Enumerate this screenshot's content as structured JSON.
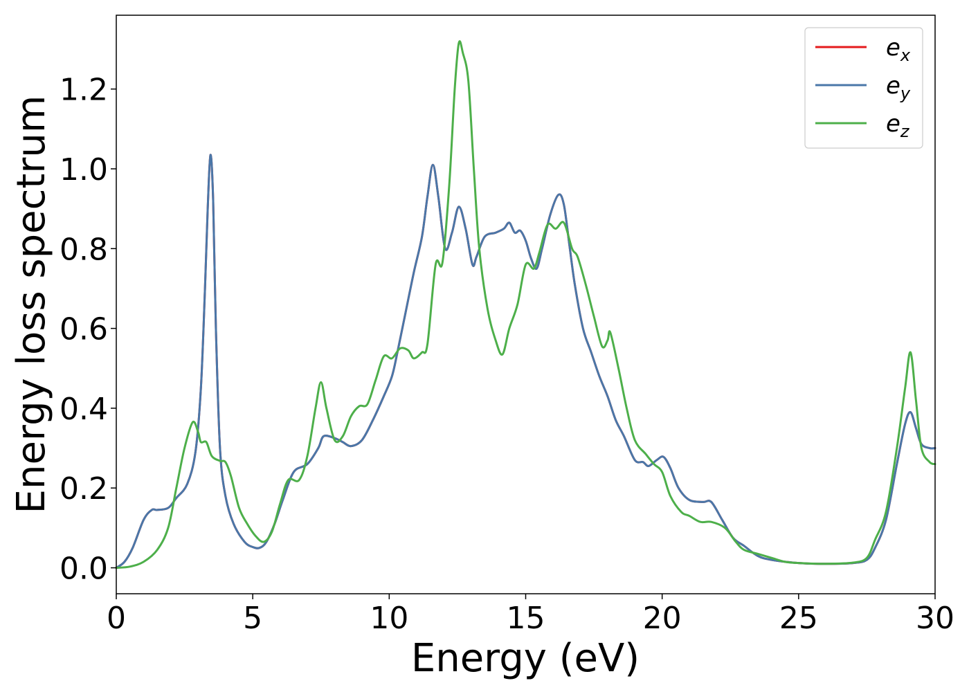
{
  "chart_data": {
    "type": "line",
    "xlabel": "Energy (eV)",
    "ylabel": "Energy loss spectrum",
    "xlim": [
      0,
      30
    ],
    "ylim": [
      -0.065,
      1.385
    ],
    "xticks": [
      0,
      5,
      10,
      15,
      20,
      25,
      30
    ],
    "xtick_labels": [
      "0",
      "5",
      "10",
      "15",
      "20",
      "25",
      "30"
    ],
    "yticks": [
      0.0,
      0.2,
      0.4,
      0.6,
      0.8,
      1.0,
      1.2
    ],
    "ytick_labels": [
      "0.0",
      "0.2",
      "0.4",
      "0.6",
      "0.8",
      "1.0",
      "1.2"
    ],
    "grid": false,
    "legend_position": "top-right",
    "series": [
      {
        "name": "e_x",
        "legend_base": "e",
        "legend_sub": "x",
        "color": "#e41a1c",
        "points": [
          [
            0,
            0
          ],
          [
            0.3,
            0.015
          ],
          [
            0.6,
            0.05
          ],
          [
            1.0,
            0.12
          ],
          [
            1.3,
            0.145
          ],
          [
            1.5,
            0.145
          ],
          [
            1.9,
            0.15
          ],
          [
            2.2,
            0.175
          ],
          [
            2.6,
            0.21
          ],
          [
            2.9,
            0.29
          ],
          [
            3.1,
            0.45
          ],
          [
            3.25,
            0.7
          ],
          [
            3.35,
            0.9
          ],
          [
            3.45,
            1.035
          ],
          [
            3.55,
            0.92
          ],
          [
            3.65,
            0.6
          ],
          [
            3.8,
            0.3
          ],
          [
            4.0,
            0.18
          ],
          [
            4.3,
            0.11
          ],
          [
            4.7,
            0.065
          ],
          [
            5.0,
            0.052
          ],
          [
            5.25,
            0.05
          ],
          [
            5.5,
            0.065
          ],
          [
            5.8,
            0.11
          ],
          [
            6.1,
            0.17
          ],
          [
            6.5,
            0.24
          ],
          [
            7.0,
            0.26
          ],
          [
            7.4,
            0.3
          ],
          [
            7.6,
            0.33
          ],
          [
            8.0,
            0.325
          ],
          [
            8.3,
            0.315
          ],
          [
            8.6,
            0.305
          ],
          [
            9.0,
            0.32
          ],
          [
            9.4,
            0.37
          ],
          [
            9.8,
            0.43
          ],
          [
            10.1,
            0.48
          ],
          [
            10.3,
            0.54
          ],
          [
            10.6,
            0.64
          ],
          [
            10.9,
            0.74
          ],
          [
            11.2,
            0.83
          ],
          [
            11.4,
            0.93
          ],
          [
            11.6,
            1.01
          ],
          [
            11.8,
            0.93
          ],
          [
            12.05,
            0.8
          ],
          [
            12.3,
            0.84
          ],
          [
            12.55,
            0.905
          ],
          [
            12.8,
            0.85
          ],
          [
            13.05,
            0.76
          ],
          [
            13.2,
            0.78
          ],
          [
            13.5,
            0.83
          ],
          [
            13.9,
            0.84
          ],
          [
            14.2,
            0.85
          ],
          [
            14.4,
            0.865
          ],
          [
            14.6,
            0.84
          ],
          [
            14.8,
            0.845
          ],
          [
            15.0,
            0.82
          ],
          [
            15.2,
            0.775
          ],
          [
            15.4,
            0.75
          ],
          [
            15.6,
            0.8
          ],
          [
            15.9,
            0.885
          ],
          [
            16.2,
            0.935
          ],
          [
            16.4,
            0.91
          ],
          [
            16.6,
            0.81
          ],
          [
            16.8,
            0.71
          ],
          [
            17.1,
            0.6
          ],
          [
            17.4,
            0.54
          ],
          [
            17.7,
            0.48
          ],
          [
            18.0,
            0.43
          ],
          [
            18.3,
            0.37
          ],
          [
            18.6,
            0.33
          ],
          [
            19.0,
            0.27
          ],
          [
            19.3,
            0.265
          ],
          [
            19.5,
            0.255
          ],
          [
            19.8,
            0.27
          ],
          [
            20.05,
            0.278
          ],
          [
            20.3,
            0.25
          ],
          [
            20.6,
            0.2
          ],
          [
            21.0,
            0.17
          ],
          [
            21.5,
            0.165
          ],
          [
            21.8,
            0.165
          ],
          [
            22.2,
            0.12
          ],
          [
            22.6,
            0.075
          ],
          [
            23.0,
            0.055
          ],
          [
            23.5,
            0.03
          ],
          [
            24.0,
            0.02
          ],
          [
            25.0,
            0.012
          ],
          [
            26.0,
            0.01
          ],
          [
            27.0,
            0.012
          ],
          [
            27.5,
            0.02
          ],
          [
            27.8,
            0.05
          ],
          [
            28.2,
            0.12
          ],
          [
            28.6,
            0.26
          ],
          [
            28.9,
            0.36
          ],
          [
            29.1,
            0.39
          ],
          [
            29.3,
            0.35
          ],
          [
            29.5,
            0.31
          ],
          [
            29.8,
            0.3
          ],
          [
            30.0,
            0.3
          ]
        ]
      },
      {
        "name": "e_y",
        "legend_base": "e",
        "legend_sub": "y",
        "color": "#4a77a8",
        "points": [
          [
            0,
            0
          ],
          [
            0.3,
            0.015
          ],
          [
            0.6,
            0.05
          ],
          [
            1.0,
            0.12
          ],
          [
            1.3,
            0.145
          ],
          [
            1.5,
            0.145
          ],
          [
            1.9,
            0.15
          ],
          [
            2.2,
            0.175
          ],
          [
            2.6,
            0.21
          ],
          [
            2.9,
            0.29
          ],
          [
            3.1,
            0.45
          ],
          [
            3.25,
            0.7
          ],
          [
            3.35,
            0.9
          ],
          [
            3.45,
            1.035
          ],
          [
            3.55,
            0.92
          ],
          [
            3.65,
            0.6
          ],
          [
            3.8,
            0.3
          ],
          [
            4.0,
            0.18
          ],
          [
            4.3,
            0.11
          ],
          [
            4.7,
            0.065
          ],
          [
            5.0,
            0.052
          ],
          [
            5.25,
            0.05
          ],
          [
            5.5,
            0.065
          ],
          [
            5.8,
            0.11
          ],
          [
            6.1,
            0.17
          ],
          [
            6.5,
            0.24
          ],
          [
            7.0,
            0.26
          ],
          [
            7.4,
            0.3
          ],
          [
            7.6,
            0.33
          ],
          [
            8.0,
            0.325
          ],
          [
            8.3,
            0.315
          ],
          [
            8.6,
            0.305
          ],
          [
            9.0,
            0.32
          ],
          [
            9.4,
            0.37
          ],
          [
            9.8,
            0.43
          ],
          [
            10.1,
            0.48
          ],
          [
            10.3,
            0.54
          ],
          [
            10.6,
            0.64
          ],
          [
            10.9,
            0.74
          ],
          [
            11.2,
            0.83
          ],
          [
            11.4,
            0.93
          ],
          [
            11.6,
            1.01
          ],
          [
            11.8,
            0.93
          ],
          [
            12.05,
            0.8
          ],
          [
            12.3,
            0.84
          ],
          [
            12.55,
            0.905
          ],
          [
            12.8,
            0.85
          ],
          [
            13.05,
            0.76
          ],
          [
            13.2,
            0.78
          ],
          [
            13.5,
            0.83
          ],
          [
            13.9,
            0.84
          ],
          [
            14.2,
            0.85
          ],
          [
            14.4,
            0.865
          ],
          [
            14.6,
            0.84
          ],
          [
            14.8,
            0.845
          ],
          [
            15.0,
            0.82
          ],
          [
            15.2,
            0.775
          ],
          [
            15.4,
            0.75
          ],
          [
            15.6,
            0.8
          ],
          [
            15.9,
            0.885
          ],
          [
            16.2,
            0.935
          ],
          [
            16.4,
            0.91
          ],
          [
            16.6,
            0.81
          ],
          [
            16.8,
            0.71
          ],
          [
            17.1,
            0.6
          ],
          [
            17.4,
            0.54
          ],
          [
            17.7,
            0.48
          ],
          [
            18.0,
            0.43
          ],
          [
            18.3,
            0.37
          ],
          [
            18.6,
            0.33
          ],
          [
            19.0,
            0.27
          ],
          [
            19.3,
            0.265
          ],
          [
            19.5,
            0.255
          ],
          [
            19.8,
            0.27
          ],
          [
            20.05,
            0.278
          ],
          [
            20.3,
            0.25
          ],
          [
            20.6,
            0.2
          ],
          [
            21.0,
            0.17
          ],
          [
            21.5,
            0.165
          ],
          [
            21.8,
            0.165
          ],
          [
            22.2,
            0.12
          ],
          [
            22.6,
            0.075
          ],
          [
            23.0,
            0.055
          ],
          [
            23.5,
            0.03
          ],
          [
            24.0,
            0.02
          ],
          [
            25.0,
            0.012
          ],
          [
            26.0,
            0.01
          ],
          [
            27.0,
            0.012
          ],
          [
            27.5,
            0.02
          ],
          [
            27.8,
            0.05
          ],
          [
            28.2,
            0.12
          ],
          [
            28.6,
            0.26
          ],
          [
            28.9,
            0.36
          ],
          [
            29.1,
            0.39
          ],
          [
            29.3,
            0.35
          ],
          [
            29.5,
            0.31
          ],
          [
            29.8,
            0.3
          ],
          [
            30.0,
            0.3
          ]
        ]
      },
      {
        "name": "e_z",
        "legend_base": "e",
        "legend_sub": "z",
        "color": "#4daf4a",
        "points": [
          [
            0,
            0
          ],
          [
            0.5,
            0.003
          ],
          [
            1.0,
            0.015
          ],
          [
            1.5,
            0.045
          ],
          [
            1.9,
            0.1
          ],
          [
            2.2,
            0.2
          ],
          [
            2.5,
            0.3
          ],
          [
            2.8,
            0.365
          ],
          [
            3.0,
            0.34
          ],
          [
            3.1,
            0.315
          ],
          [
            3.3,
            0.315
          ],
          [
            3.5,
            0.28
          ],
          [
            3.8,
            0.268
          ],
          [
            4.0,
            0.265
          ],
          [
            4.2,
            0.23
          ],
          [
            4.5,
            0.15
          ],
          [
            4.8,
            0.11
          ],
          [
            5.1,
            0.08
          ],
          [
            5.4,
            0.065
          ],
          [
            5.7,
            0.09
          ],
          [
            6.0,
            0.16
          ],
          [
            6.3,
            0.22
          ],
          [
            6.7,
            0.22
          ],
          [
            7.0,
            0.28
          ],
          [
            7.3,
            0.4
          ],
          [
            7.5,
            0.465
          ],
          [
            7.7,
            0.4
          ],
          [
            8.0,
            0.32
          ],
          [
            8.3,
            0.33
          ],
          [
            8.6,
            0.38
          ],
          [
            8.9,
            0.405
          ],
          [
            9.2,
            0.41
          ],
          [
            9.5,
            0.47
          ],
          [
            9.8,
            0.53
          ],
          [
            10.1,
            0.525
          ],
          [
            10.4,
            0.55
          ],
          [
            10.7,
            0.545
          ],
          [
            10.9,
            0.525
          ],
          [
            11.2,
            0.54
          ],
          [
            11.4,
            0.56
          ],
          [
            11.7,
            0.76
          ],
          [
            11.95,
            0.765
          ],
          [
            12.2,
            0.96
          ],
          [
            12.4,
            1.2
          ],
          [
            12.55,
            1.315
          ],
          [
            12.7,
            1.29
          ],
          [
            12.9,
            1.22
          ],
          [
            13.1,
            1.0
          ],
          [
            13.3,
            0.8
          ],
          [
            13.6,
            0.65
          ],
          [
            13.9,
            0.57
          ],
          [
            14.15,
            0.535
          ],
          [
            14.4,
            0.6
          ],
          [
            14.7,
            0.66
          ],
          [
            15.0,
            0.76
          ],
          [
            15.3,
            0.75
          ],
          [
            15.5,
            0.79
          ],
          [
            15.8,
            0.86
          ],
          [
            16.1,
            0.85
          ],
          [
            16.4,
            0.865
          ],
          [
            16.7,
            0.8
          ],
          [
            16.9,
            0.78
          ],
          [
            17.2,
            0.71
          ],
          [
            17.5,
            0.63
          ],
          [
            17.8,
            0.555
          ],
          [
            18.0,
            0.57
          ],
          [
            18.1,
            0.59
          ],
          [
            18.4,
            0.5
          ],
          [
            18.7,
            0.4
          ],
          [
            19.0,
            0.32
          ],
          [
            19.4,
            0.285
          ],
          [
            19.7,
            0.26
          ],
          [
            20.0,
            0.24
          ],
          [
            20.3,
            0.18
          ],
          [
            20.7,
            0.14
          ],
          [
            21.0,
            0.13
          ],
          [
            21.4,
            0.115
          ],
          [
            21.8,
            0.115
          ],
          [
            22.3,
            0.1
          ],
          [
            22.7,
            0.065
          ],
          [
            23.0,
            0.045
          ],
          [
            23.5,
            0.035
          ],
          [
            24.0,
            0.025
          ],
          [
            24.5,
            0.015
          ],
          [
            25.0,
            0.012
          ],
          [
            26.0,
            0.01
          ],
          [
            27.0,
            0.013
          ],
          [
            27.5,
            0.025
          ],
          [
            27.8,
            0.07
          ],
          [
            28.2,
            0.14
          ],
          [
            28.6,
            0.3
          ],
          [
            28.9,
            0.45
          ],
          [
            29.1,
            0.54
          ],
          [
            29.3,
            0.42
          ],
          [
            29.5,
            0.3
          ],
          [
            29.8,
            0.265
          ],
          [
            30.0,
            0.26
          ]
        ]
      }
    ]
  }
}
